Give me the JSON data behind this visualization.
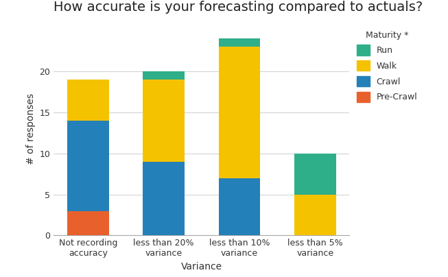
{
  "title": "How accurate is your forecasting compared to actuals?",
  "xlabel": "Variance",
  "ylabel": "# of responses",
  "categories": [
    "Not recording\naccuracy",
    "less than 20%\nvariance",
    "less than 10%\nvariance",
    "less than 5%\nvariance"
  ],
  "series": {
    "Pre-Crawl": [
      3,
      0,
      0,
      0
    ],
    "Crawl": [
      11,
      9,
      7,
      0
    ],
    "Walk": [
      5,
      10,
      16,
      5
    ],
    "Run": [
      0,
      1,
      1,
      5
    ]
  },
  "colors": {
    "Pre-Crawl": "#E8602C",
    "Crawl": "#2480B8",
    "Walk": "#F5C200",
    "Run": "#2EAF8A"
  },
  "ylim": [
    0,
    26
  ],
  "yticks": [
    0,
    5,
    10,
    15,
    20
  ],
  "background_color": "#FFFFFF",
  "grid_color": "#D3D3D3",
  "title_fontsize": 14,
  "axis_label_fontsize": 10,
  "tick_fontsize": 9,
  "legend_title": "Maturity *",
  "bar_width": 0.55
}
